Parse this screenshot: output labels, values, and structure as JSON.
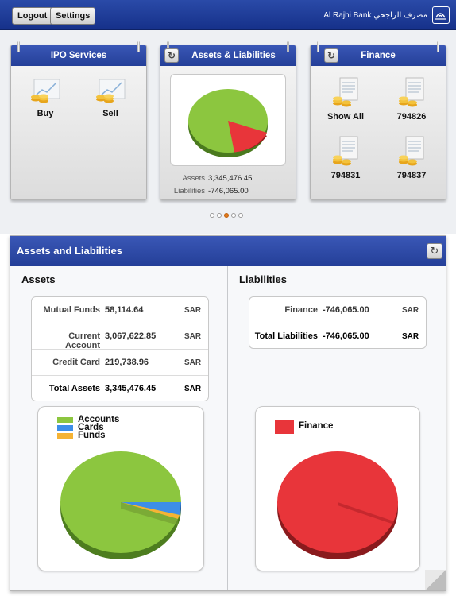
{
  "header": {
    "logout_label": "Logout",
    "settings_label": "Settings",
    "bank_name": "Al Rajhi Bank مصرف الراجحي",
    "bar_color": "#1f3c99"
  },
  "carousel": {
    "ipo": {
      "title": "IPO Services",
      "tiles": [
        {
          "label": "Buy",
          "icon": "coins-chart-icon"
        },
        {
          "label": "Sell",
          "icon": "coins-chart-icon"
        }
      ]
    },
    "assets_liabilities": {
      "title": "Assets & Liabilities",
      "assets_label": "Assets",
      "assets_value": "3,345,476.45",
      "liabilities_label": "Liabilities",
      "liabilities_value": "-746,065.00",
      "pie": {
        "green_fraction": 0.82,
        "red_fraction": 0.18
      }
    },
    "finance": {
      "title": "Finance",
      "tiles": [
        {
          "label": "Show All",
          "icon": "coins-document-icon"
        },
        {
          "label": "794826",
          "icon": "coins-document-icon"
        },
        {
          "label": "794831",
          "icon": "coins-document-icon"
        },
        {
          "label": "794837",
          "icon": "coins-document-icon"
        }
      ]
    },
    "page_indicator": {
      "count": 5,
      "active_index": 2
    }
  },
  "panel": {
    "title": "Assets and Liabilities",
    "assets": {
      "heading": "Assets",
      "rows": [
        {
          "label": "Mutual Funds",
          "value": "58,114.64",
          "currency": "SAR"
        },
        {
          "label": "Current Account",
          "value": "3,067,622.85",
          "currency": "SAR"
        },
        {
          "label": "Credit Card",
          "value": "219,738.96",
          "currency": "SAR"
        },
        {
          "label": "Total Assets",
          "value": "3,345,476.45",
          "currency": "SAR"
        }
      ],
      "legend": [
        {
          "label": "Accounts",
          "color": "#8cc63f"
        },
        {
          "label": "Cards",
          "color": "#3d8ee8"
        },
        {
          "label": "Funds",
          "color": "#f5b335"
        }
      ]
    },
    "liabilities": {
      "heading": "Liabilities",
      "rows": [
        {
          "label": "Finance",
          "value": "-746,065.00",
          "currency": "SAR"
        },
        {
          "label": "Total Liabilities",
          "value": "-746,065.00",
          "currency": "SAR"
        }
      ],
      "legend": [
        {
          "label": "Finance",
          "color": "#e8353a"
        }
      ]
    }
  }
}
